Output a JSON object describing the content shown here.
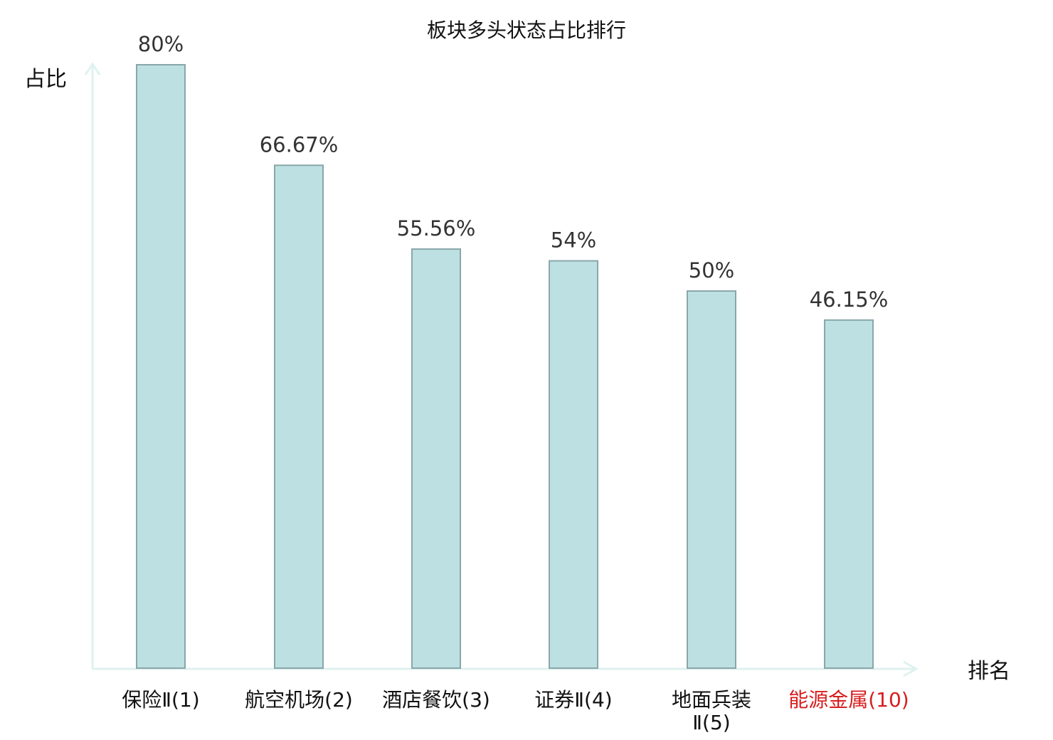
{
  "chart_data": {
    "type": "bar",
    "title": "板块多头状态占比排行",
    "ylabel": "占比",
    "xlabel": "排名",
    "ylim": [
      0,
      80
    ],
    "categories": [
      {
        "name": "保险Ⅱ",
        "rank": "(1)"
      },
      {
        "name": "航空机场",
        "rank": "(2)"
      },
      {
        "name": "酒店餐饮",
        "rank": "(3)"
      },
      {
        "name": "证券Ⅱ",
        "rank": "(4)"
      },
      {
        "name": "地面兵装Ⅱ",
        "rank": "(5)"
      },
      {
        "name": "能源金属",
        "rank": "(10)"
      }
    ],
    "values": [
      80,
      66.67,
      55.56,
      54,
      50,
      46.15
    ],
    "value_labels": [
      "80%",
      "66.67%",
      "55.56%",
      "54%",
      "50%",
      "46.15%"
    ],
    "highlight_index": 5,
    "colors": {
      "bar_fill": "#bde1e3",
      "bar_stroke": "#8aa6a9",
      "axis": "#dff2ef",
      "highlight": "#d81e1e"
    },
    "grid": false
  }
}
